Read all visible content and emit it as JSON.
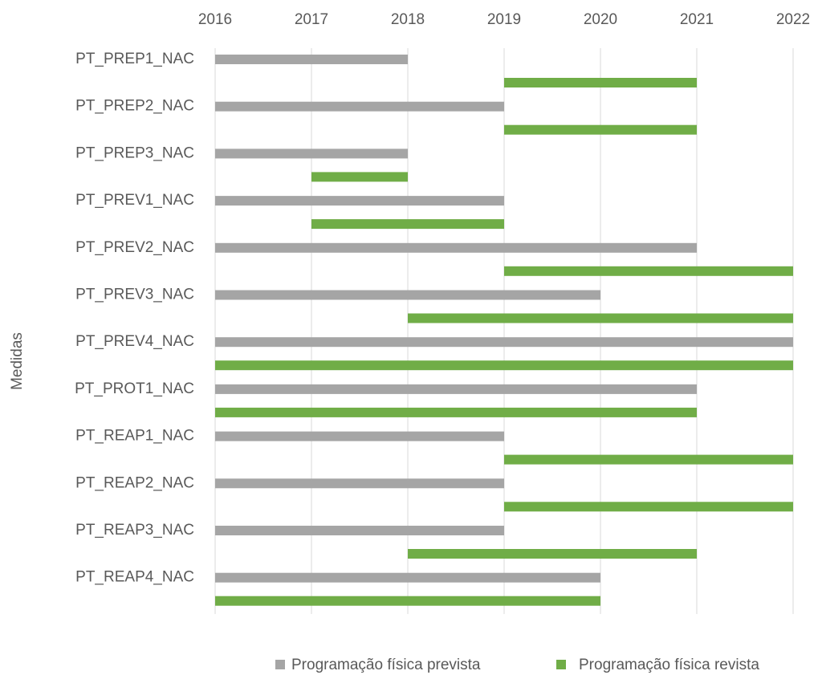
{
  "chart_data": {
    "type": "floating-bar",
    "y_axis_label": "Medidas",
    "categories": [
      "PT_PREP1_NAC",
      "PT_PREP2_NAC",
      "PT_PREP3_NAC",
      "PT_PREV1_NAC",
      "PT_PREV2_NAC",
      "PT_PREV3_NAC",
      "PT_PREV4_NAC",
      "PT_PROT1_NAC",
      "PT_REAP1_NAC",
      "PT_REAP2_NAC",
      "PT_REAP3_NAC",
      "PT_REAP4_NAC"
    ],
    "series": [
      {
        "name": "Programação física prevista",
        "color": "#a5a5a5",
        "start": [
          2016,
          2016,
          2016,
          2016,
          2016,
          2016,
          2016,
          2016,
          2016,
          2016,
          2016,
          2016
        ],
        "end": [
          2018,
          2019,
          2018,
          2019,
          2021,
          2020,
          2022,
          2021,
          2019,
          2019,
          2019,
          2020
        ]
      },
      {
        "name": "Programação física revista",
        "color": "#70ad47",
        "start": [
          2019,
          2019,
          2017,
          2017,
          2019,
          2018,
          2016,
          2016,
          2019,
          2019,
          2018,
          2016
        ],
        "end": [
          2021,
          2021,
          2018,
          2019,
          2022,
          2022,
          2022,
          2021,
          2022,
          2022,
          2021,
          2020
        ]
      }
    ],
    "xlim": [
      2016,
      2022
    ],
    "xticks": [
      2016,
      2017,
      2018,
      2019,
      2020,
      2021,
      2022
    ],
    "grid": true,
    "legend": "bottom"
  }
}
